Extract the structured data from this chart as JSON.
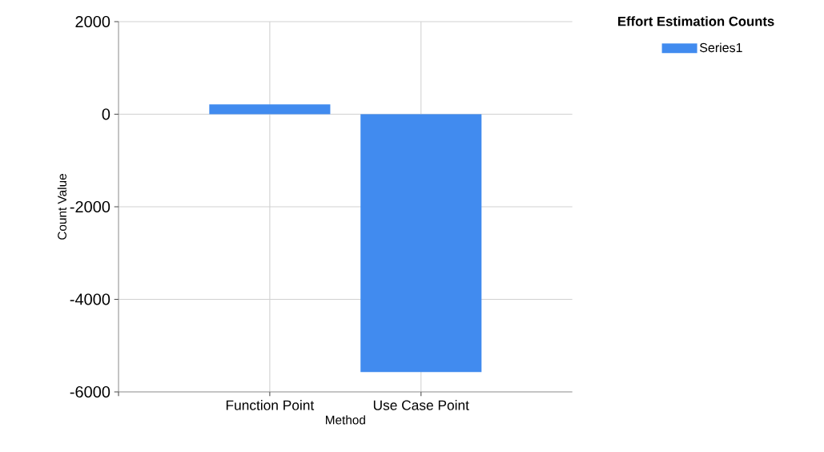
{
  "chart_data": {
    "type": "bar",
    "xlabel": "Method",
    "ylabel": "Count Value",
    "legend_title": "Effort Estimation Counts",
    "categories": [
      "Function Point",
      "Use Case Point"
    ],
    "series": [
      {
        "name": "Series1",
        "color": "#418bef",
        "values": [
          210,
          -5570
        ]
      }
    ],
    "ylim": [
      -6000,
      2000
    ],
    "yticks": [
      -6000,
      -4000,
      -2000,
      0,
      2000
    ],
    "grid": true,
    "legend": "top right"
  }
}
